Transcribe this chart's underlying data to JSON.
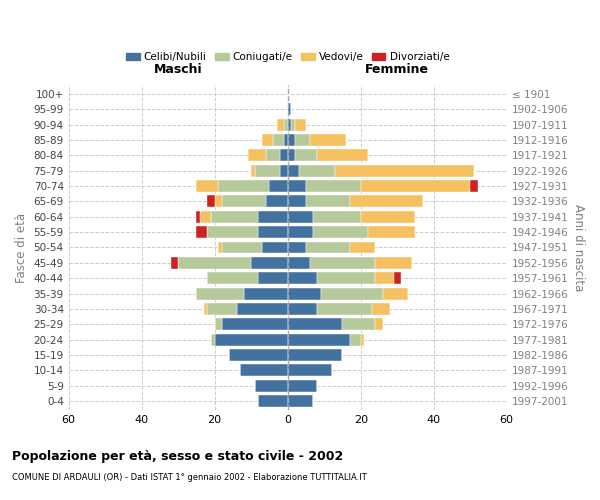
{
  "age_groups": [
    "0-4",
    "5-9",
    "10-14",
    "15-19",
    "20-24",
    "25-29",
    "30-34",
    "35-39",
    "40-44",
    "45-49",
    "50-54",
    "55-59",
    "60-64",
    "65-69",
    "70-74",
    "75-79",
    "80-84",
    "85-89",
    "90-94",
    "95-99",
    "100+"
  ],
  "birth_years": [
    "1997-2001",
    "1992-1996",
    "1987-1991",
    "1982-1986",
    "1977-1981",
    "1972-1976",
    "1967-1971",
    "1962-1966",
    "1957-1961",
    "1952-1956",
    "1947-1951",
    "1942-1946",
    "1937-1941",
    "1932-1936",
    "1927-1931",
    "1922-1926",
    "1917-1921",
    "1912-1916",
    "1907-1911",
    "1902-1906",
    "≤ 1901"
  ],
  "colors": {
    "celibi": "#4472a0",
    "coniugati": "#b5c99a",
    "vedovi": "#f5c060",
    "divorziati": "#cc2222"
  },
  "maschi": {
    "celibi": [
      8,
      9,
      13,
      16,
      20,
      18,
      14,
      12,
      8,
      10,
      7,
      8,
      8,
      6,
      5,
      2,
      2,
      1,
      0,
      0,
      0
    ],
    "coniugati": [
      0,
      0,
      0,
      0,
      1,
      2,
      8,
      13,
      14,
      20,
      11,
      14,
      13,
      12,
      14,
      7,
      4,
      3,
      1,
      0,
      0
    ],
    "vedovi": [
      0,
      0,
      0,
      0,
      0,
      0,
      1,
      0,
      0,
      0,
      1,
      0,
      3,
      2,
      6,
      1,
      5,
      3,
      2,
      0,
      0
    ],
    "divorziati": [
      0,
      0,
      0,
      0,
      0,
      0,
      0,
      0,
      0,
      2,
      0,
      3,
      1,
      2,
      0,
      0,
      0,
      0,
      0,
      0,
      0
    ]
  },
  "femmine": {
    "celibi": [
      7,
      8,
      12,
      15,
      17,
      15,
      8,
      9,
      8,
      6,
      5,
      7,
      7,
      5,
      5,
      3,
      2,
      2,
      1,
      1,
      0
    ],
    "coniugati": [
      0,
      0,
      0,
      0,
      3,
      9,
      15,
      17,
      16,
      18,
      12,
      15,
      13,
      12,
      15,
      10,
      6,
      4,
      1,
      0,
      0
    ],
    "vedovi": [
      0,
      0,
      0,
      0,
      1,
      2,
      5,
      7,
      5,
      10,
      7,
      13,
      15,
      20,
      30,
      38,
      14,
      10,
      3,
      0,
      0
    ],
    "divorziati": [
      0,
      0,
      0,
      0,
      0,
      0,
      0,
      0,
      2,
      0,
      0,
      0,
      0,
      0,
      2,
      0,
      0,
      0,
      0,
      0,
      0
    ]
  },
  "xlim": 60,
  "title": "Popolazione per età, sesso e stato civile - 2002",
  "subtitle": "COMUNE DI ARDAULI (OR) - Dati ISTAT 1° gennaio 2002 - Elaborazione TUTTITALIA.IT",
  "ylabel_left": "Fasce di età",
  "ylabel_right": "Anni di nascita",
  "xlabel_left": "Maschi",
  "xlabel_right": "Femmine"
}
